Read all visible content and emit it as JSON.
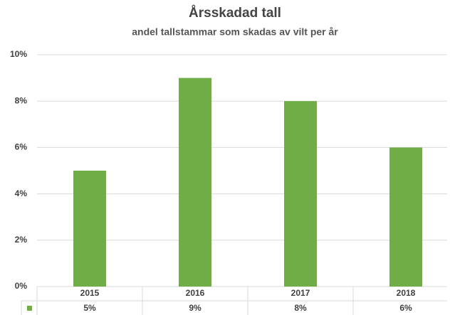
{
  "chart_data": {
    "type": "bar",
    "title": "Årsskadad tall",
    "subtitle": "andel tallstammar som skadas av vilt per år",
    "categories": [
      "2015",
      "2016",
      "2017",
      "2018"
    ],
    "values": [
      5,
      9,
      8,
      6
    ],
    "value_labels": [
      "5%",
      "9%",
      "8%",
      "6%"
    ],
    "color": "#70ad47",
    "ylim": [
      0,
      10
    ],
    "yticks": [
      {
        "value": 0,
        "label": "0%"
      },
      {
        "value": 2,
        "label": "2%"
      },
      {
        "value": 4,
        "label": "4%"
      },
      {
        "value": 6,
        "label": "6%"
      },
      {
        "value": 8,
        "label": "8%"
      },
      {
        "value": 10,
        "label": "10%"
      }
    ],
    "grid": true
  }
}
